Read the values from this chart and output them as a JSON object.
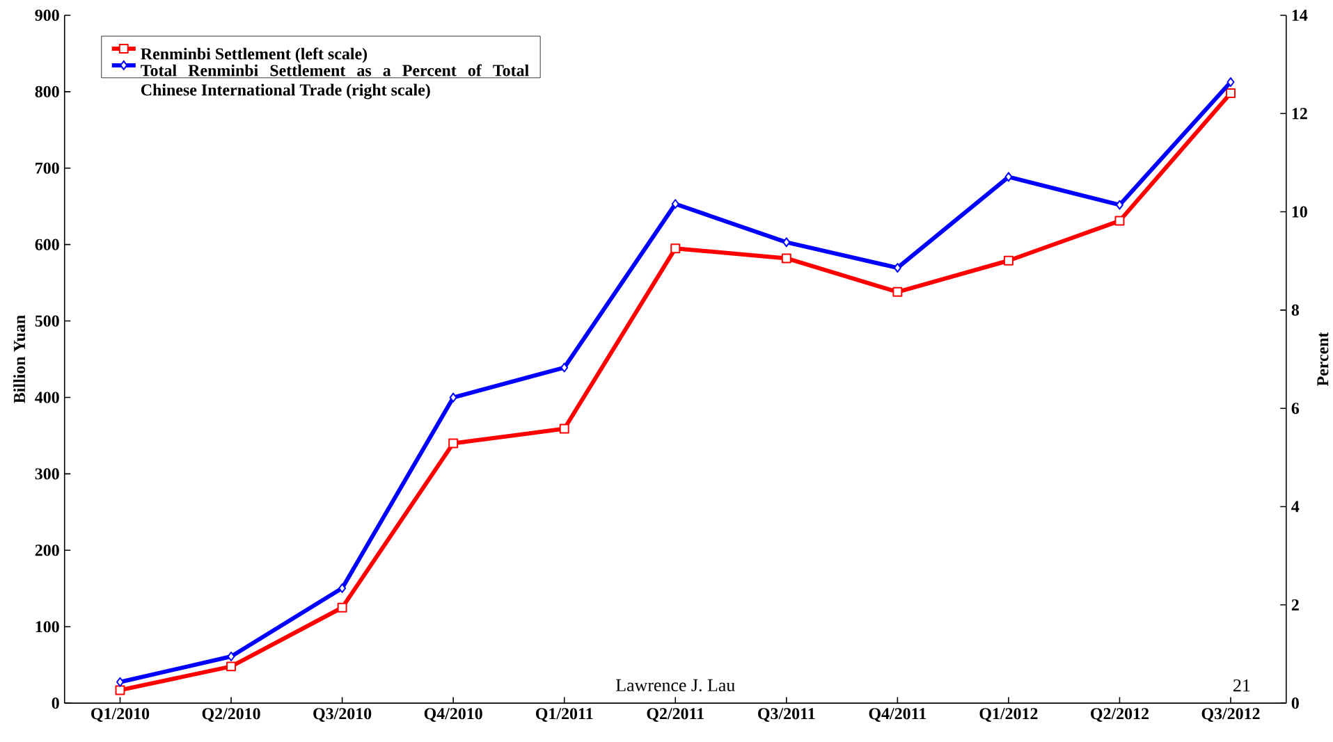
{
  "chart_data": {
    "type": "line",
    "categories": [
      "Q1/2010",
      "Q2/2010",
      "Q3/2010",
      "Q4/2010",
      "Q1/2011",
      "Q2/2011",
      "Q3/2011",
      "Q4/2011",
      "Q1/2012",
      "Q2/2012",
      "Q3/2012"
    ],
    "series": [
      {
        "name": "Renminbi Settlement (left scale)",
        "color": "#ff0000",
        "marker": "square",
        "values": [
          17,
          48,
          125,
          340,
          359,
          595,
          582,
          538,
          579,
          631,
          798
        ]
      },
      {
        "name": "Total Renminbi Settlement as a Percent of Total Chinese International  Trade (right scale)",
        "color": "#0000ff",
        "marker": "diamond",
        "axis": "y2",
        "values": [
          0.43,
          0.95,
          2.34,
          6.22,
          6.83,
          10.16,
          9.38,
          8.86,
          10.71,
          10.14,
          12.64
        ]
      }
    ],
    "ylabel": "Billion Yuan",
    "y2label": "Percent",
    "ylim": [
      0,
      900
    ],
    "yticks": [
      0,
      100,
      200,
      300,
      400,
      500,
      600,
      700,
      800,
      900
    ],
    "y2lim": [
      0,
      14
    ],
    "y2ticks": [
      0,
      2,
      4,
      6,
      8,
      10,
      12,
      14
    ],
    "legend": "top left",
    "grid": false,
    "annotations": [
      "Lawrence J. Lau",
      "21"
    ]
  }
}
